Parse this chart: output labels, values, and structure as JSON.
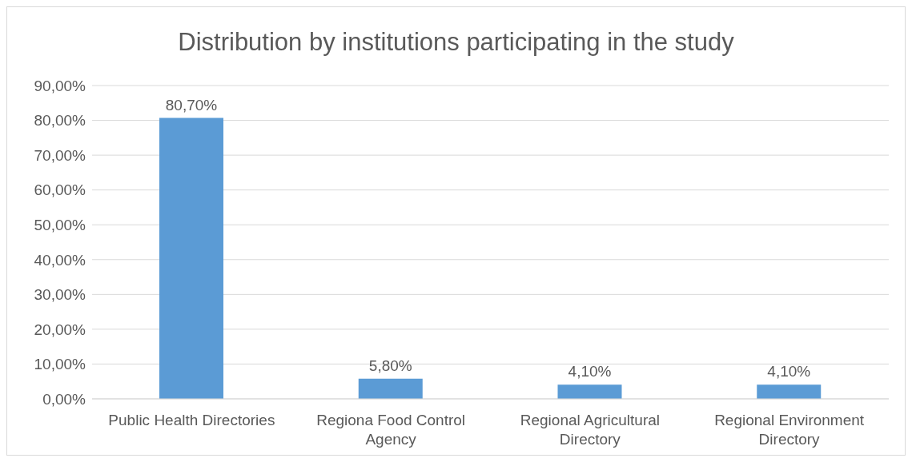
{
  "chart_data": {
    "type": "bar",
    "title": "Distribution by institutions participating in the study",
    "categories": [
      "Public Health Directories",
      "Regiona Food Control Agency",
      "Regional Agricultural Directory",
      "Regional Environment Directory"
    ],
    "values": [
      80.7,
      5.8,
      4.1,
      4.1
    ],
    "value_labels": [
      "80,70%",
      "5,80%",
      "4,10%",
      "4,10%"
    ],
    "color": "#5b9bd5",
    "ylim": [
      0,
      90
    ],
    "yticks": [
      {
        "value": 0,
        "label": "0,00%"
      },
      {
        "value": 10,
        "label": "10,00%"
      },
      {
        "value": 20,
        "label": "20,00%"
      },
      {
        "value": 30,
        "label": "30,00%"
      },
      {
        "value": 40,
        "label": "40,00%"
      },
      {
        "value": 50,
        "label": "50,00%"
      },
      {
        "value": 60,
        "label": "60,00%"
      },
      {
        "value": 70,
        "label": "70,00%"
      },
      {
        "value": 80,
        "label": "80,00%"
      },
      {
        "value": 90,
        "label": "90,00%"
      }
    ],
    "grid": "y"
  }
}
